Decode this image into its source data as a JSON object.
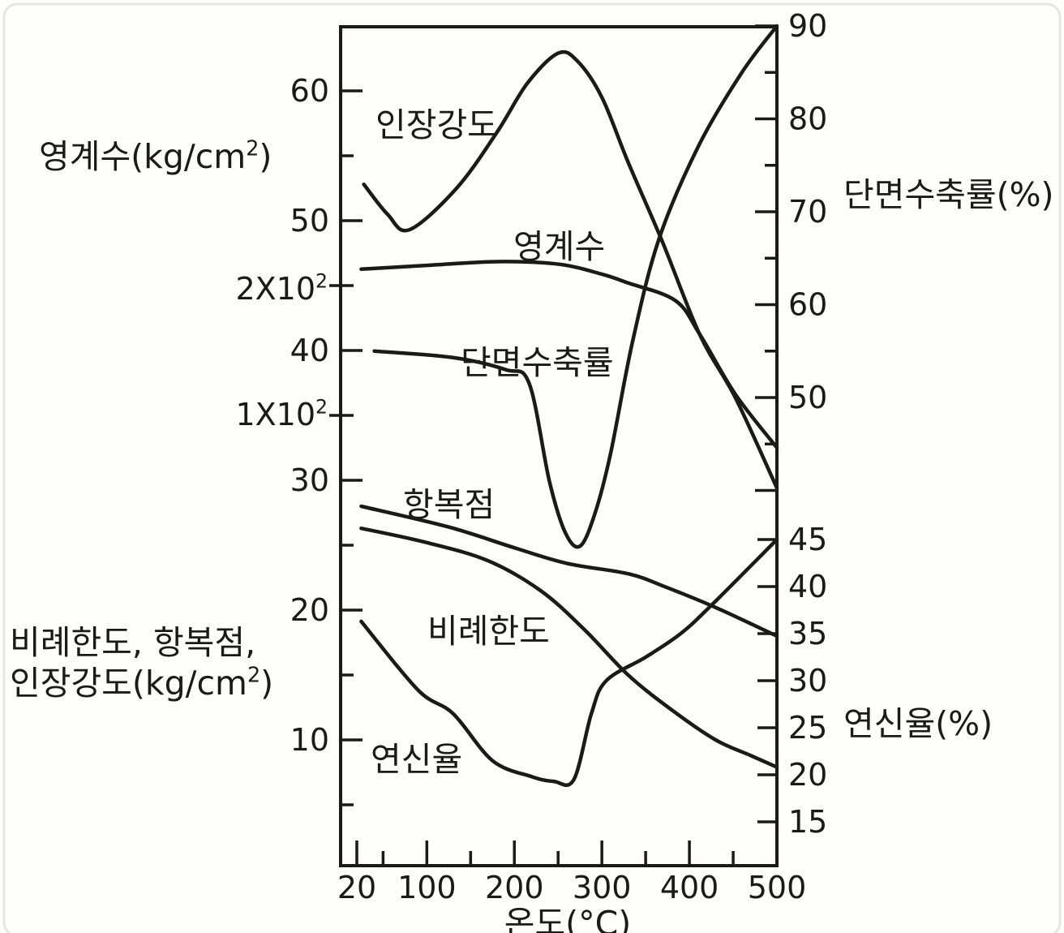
{
  "page": {
    "background": "#fdfdfc",
    "ink_color": "#1c1a18",
    "frame_color": "#e7e5e2"
  },
  "chart_data": {
    "type": "line",
    "description_visible_text_only": true,
    "x_axis": {
      "title": "온도(°C)",
      "range": [
        20,
        500
      ],
      "major_ticks": [
        20,
        100,
        200,
        300,
        400,
        500
      ],
      "minor_ticks": [
        50,
        150,
        250,
        350,
        450
      ]
    },
    "axes": {
      "strength": {
        "side": "left",
        "title_lines": [
          "비례한도, 항복점,",
          "인장강도(kg/cm^2)"
        ],
        "major_ticks": [
          60,
          50,
          40,
          30,
          20,
          10
        ],
        "minor_ticks": [
          55,
          45,
          35,
          25,
          15,
          5
        ],
        "cross_ticks": [
          45,
          35
        ],
        "range": [
          0,
          64
        ]
      },
      "youngs": {
        "side": "left",
        "title": "영계수(kg/cm^2)",
        "tick_labels": [
          "2X10^2",
          "1X10^2"
        ],
        "tick_values": [
          200,
          100
        ]
      },
      "reduction": {
        "side": "right",
        "title": "단면수축률(%)",
        "labeled_ticks": [
          90,
          80,
          70,
          60,
          50
        ],
        "all_ticks": [
          90,
          85,
          80,
          75,
          70,
          65,
          60,
          55,
          50,
          45,
          40
        ]
      },
      "elongation": {
        "side": "right",
        "title": "연신율(%)",
        "labeled_ticks": [
          45,
          40,
          35,
          30,
          25,
          20,
          15
        ]
      }
    },
    "series": [
      {
        "name": "tensile-strength",
        "label": "인장강도",
        "axis": "strength",
        "points": [
          [
            28,
            52.8
          ],
          [
            55,
            50.5
          ],
          [
            80,
            49.3
          ],
          [
            134,
            52.5
          ],
          [
            180,
            56.8
          ],
          [
            215,
            60.6
          ],
          [
            250,
            62.9
          ],
          [
            272,
            62.3
          ],
          [
            300,
            59.5
          ],
          [
            330,
            54.5
          ],
          [
            369,
            48.4
          ],
          [
            412,
            41.2
          ],
          [
            453,
            36.3
          ],
          [
            500,
            29.4
          ]
        ]
      },
      {
        "name": "youngs-modulus",
        "label": "영계수",
        "axis": "youngs",
        "points": [
          [
            25,
            215
          ],
          [
            100,
            218
          ],
          [
            180,
            221
          ],
          [
            250,
            219
          ],
          [
            300,
            211
          ],
          [
            330,
            204
          ],
          [
            384,
            190
          ],
          [
            412,
            163
          ],
          [
            453,
            115
          ],
          [
            500,
            73
          ]
        ]
      },
      {
        "name": "reduction-of-area",
        "label": "단면수축률",
        "axis": "reduction",
        "points": [
          [
            40,
            55
          ],
          [
            130,
            54.3
          ],
          [
            190,
            53
          ],
          [
            217,
            51.5
          ],
          [
            240,
            41
          ],
          [
            258,
            35.5
          ],
          [
            275,
            34
          ],
          [
            292,
            37.5
          ],
          [
            310,
            44
          ],
          [
            335,
            56
          ],
          [
            365,
            67
          ],
          [
            410,
            77
          ],
          [
            460,
            85
          ],
          [
            500,
            90
          ]
        ]
      },
      {
        "name": "yield-point",
        "label": "항복점",
        "axis": "strength",
        "points": [
          [
            25,
            28
          ],
          [
            125,
            26.4
          ],
          [
            200,
            24.8
          ],
          [
            260,
            23.6
          ],
          [
            330,
            22.8
          ],
          [
            372,
            21.8
          ],
          [
            430,
            20.2
          ],
          [
            500,
            18
          ]
        ]
      },
      {
        "name": "proportional-limit",
        "label": "비례한도",
        "axis": "strength",
        "points": [
          [
            25,
            26.3
          ],
          [
            100,
            25.2
          ],
          [
            170,
            23.8
          ],
          [
            230,
            21.5
          ],
          [
            280,
            18.5
          ],
          [
            330,
            15
          ],
          [
            380,
            12.3
          ],
          [
            430,
            10
          ],
          [
            470,
            8.8
          ],
          [
            500,
            7.9
          ]
        ]
      },
      {
        "name": "elongation",
        "label": "연신율",
        "axis": "elongation",
        "points": [
          [
            25,
            36.3
          ],
          [
            90,
            29
          ],
          [
            130,
            26.5
          ],
          [
            175,
            21.5
          ],
          [
            220,
            19.8
          ],
          [
            245,
            19.3
          ],
          [
            268,
            19.5
          ],
          [
            288,
            26.5
          ],
          [
            305,
            30
          ],
          [
            350,
            32.5
          ],
          [
            390,
            35
          ],
          [
            425,
            38
          ],
          [
            500,
            45
          ]
        ]
      }
    ]
  }
}
